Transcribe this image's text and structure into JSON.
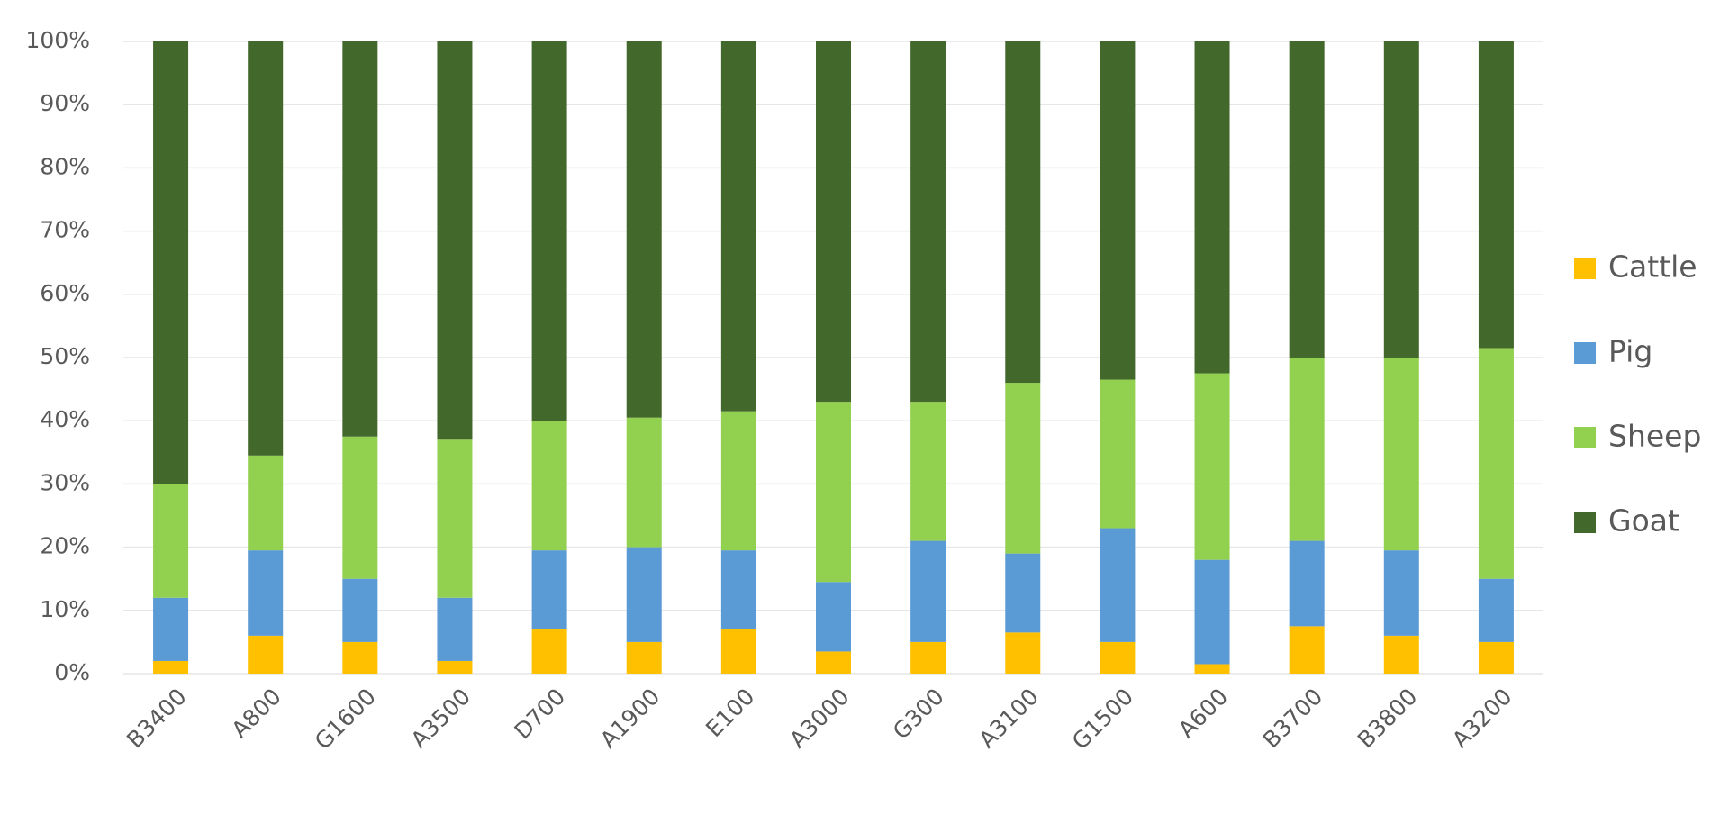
{
  "chart_data": {
    "type": "stacked_bar_percent",
    "categories": [
      "B3400",
      "A800",
      "G1600",
      "A3500",
      "D700",
      "A1900",
      "E100",
      "A3000",
      "G300",
      "A3100",
      "G1500",
      "A600",
      "B3700",
      "B3800",
      "A3200"
    ],
    "series": [
      {
        "name": "Cattle",
        "color": "#ffc000",
        "values": [
          2,
          6,
          5,
          2,
          7,
          5,
          7,
          3.5,
          5,
          6.5,
          5,
          1.5,
          7.5,
          6,
          5
        ]
      },
      {
        "name": "Pig",
        "color": "#5b9bd5",
        "values": [
          10,
          13.5,
          10,
          10,
          12.5,
          15,
          12.5,
          11,
          16,
          12.5,
          18,
          16.5,
          13.5,
          13.5,
          10
        ]
      },
      {
        "name": "Sheep",
        "color": "#92d050",
        "values": [
          18,
          15,
          22.5,
          25,
          20.5,
          20.5,
          22,
          28.5,
          22,
          27,
          23.5,
          29.5,
          29,
          30.5,
          36.5
        ]
      },
      {
        "name": "Goat",
        "color": "#43682b",
        "values": [
          70,
          65.5,
          62.5,
          63,
          60,
          59.5,
          58.5,
          57,
          57,
          54,
          53.5,
          52.5,
          50,
          50,
          48.5
        ]
      }
    ],
    "ylim": [
      0,
      100
    ],
    "yticks": [
      {
        "value": 0,
        "label": "0%"
      },
      {
        "value": 10,
        "label": "10%"
      },
      {
        "value": 20,
        "label": "20%"
      },
      {
        "value": 30,
        "label": "30%"
      },
      {
        "value": 40,
        "label": "40%"
      },
      {
        "value": 50,
        "label": "50%"
      },
      {
        "value": 60,
        "label": "60%"
      },
      {
        "value": 70,
        "label": "70%"
      },
      {
        "value": 80,
        "label": "80%"
      },
      {
        "value": 90,
        "label": "90%"
      },
      {
        "value": 100,
        "label": "100%"
      }
    ],
    "grid": true,
    "legend": "right"
  }
}
